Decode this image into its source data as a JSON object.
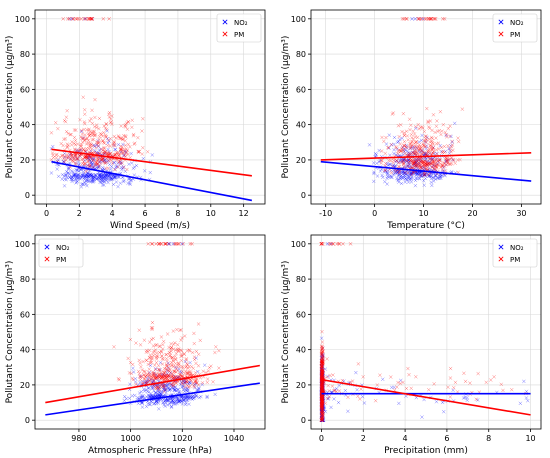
{
  "chart_data": [
    {
      "type": "scatter",
      "xlabel": "Wind Speed (m/s)",
      "ylabel": "Pollutant Concentration (μg/m³)",
      "xlim": [
        -0.7,
        13.3
      ],
      "ylim": [
        -5,
        105
      ],
      "xticks": [
        0,
        2,
        4,
        6,
        8,
        10,
        12
      ],
      "yticks": [
        0,
        20,
        40,
        60,
        80,
        100
      ],
      "legend_position": "top-right",
      "series": [
        {
          "name": "NO₂",
          "color": "#0000ff",
          "marker": "x",
          "cluster": {
            "x_range": [
              0.3,
              12.5
            ],
            "y_range": [
              0,
              75
            ],
            "center": [
              2.3,
              12
            ],
            "density": "high"
          },
          "trend": {
            "x": [
              0.3,
              12.5
            ],
            "y": [
              19,
              -3
            ]
          }
        },
        {
          "name": "PM",
          "color": "#ff0000",
          "marker": "x",
          "cluster": {
            "x_range": [
              0.3,
              12.5
            ],
            "y_range": [
              0,
              100
            ],
            "center": [
              2.3,
              24
            ],
            "density": "high"
          },
          "trend": {
            "x": [
              0.3,
              12.5
            ],
            "y": [
              26,
              11
            ]
          }
        }
      ]
    },
    {
      "type": "scatter",
      "xlabel": "Temperature (°C)",
      "ylabel": "Pollutant Concentration (μg/m³)",
      "xlim": [
        -13,
        34
      ],
      "ylim": [
        -5,
        105
      ],
      "xticks": [
        -10,
        0,
        10,
        20,
        30
      ],
      "yticks": [
        0,
        20,
        40,
        60,
        80,
        100
      ],
      "legend_position": "top-right",
      "series": [
        {
          "name": "NO₂",
          "color": "#0000ff",
          "marker": "x",
          "cluster": {
            "x_range": [
              -10,
              32
            ],
            "y_range": [
              0,
              80
            ],
            "center": [
              8,
              14
            ],
            "density": "high"
          },
          "trend": {
            "x": [
              -11,
              32
            ],
            "y": [
              19,
              8
            ]
          }
        },
        {
          "name": "PM",
          "color": "#ff0000",
          "marker": "x",
          "cluster": {
            "x_range": [
              -10,
              32
            ],
            "y_range": [
              0,
              100
            ],
            "center": [
              10,
              20
            ],
            "density": "high"
          },
          "trend": {
            "x": [
              -11,
              32
            ],
            "y": [
              20,
              24
            ]
          }
        }
      ]
    },
    {
      "type": "scatter",
      "xlabel": "Atmospheric Pressure (hPa)",
      "ylabel": "Pollutant Concentration (μg/m³)",
      "xlim": [
        963,
        1052
      ],
      "ylim": [
        -5,
        105
      ],
      "xticks": [
        980,
        1000,
        1020,
        1040
      ],
      "yticks": [
        0,
        20,
        40,
        60,
        80,
        100
      ],
      "legend_position": "top-left",
      "series": [
        {
          "name": "NO₂",
          "color": "#0000ff",
          "marker": "x",
          "cluster": {
            "x_range": [
              967,
              1050
            ],
            "y_range": [
              0,
              70
            ],
            "center": [
              1014,
              14
            ],
            "density": "high"
          },
          "trend": {
            "x": [
              967,
              1050
            ],
            "y": [
              3,
              21
            ]
          }
        },
        {
          "name": "PM",
          "color": "#ff0000",
          "marker": "x",
          "cluster": {
            "x_range": [
              967,
              1050
            ],
            "y_range": [
              0,
              100
            ],
            "center": [
              1015,
              26
            ],
            "density": "high"
          },
          "trend": {
            "x": [
              967,
              1050
            ],
            "y": [
              10,
              31
            ]
          }
        }
      ]
    },
    {
      "type": "scatter",
      "xlabel": "Precipitation (mm)",
      "ylabel": "Pollutant Concentration (μg/m³)",
      "xlim": [
        -0.5,
        10.5
      ],
      "ylim": [
        -5,
        105
      ],
      "xticks": [
        0,
        2,
        4,
        6,
        8,
        10
      ],
      "yticks": [
        0,
        20,
        40,
        60,
        80,
        100
      ],
      "legend_position": "top-right",
      "series": [
        {
          "name": "NO₂",
          "color": "#0000ff",
          "marker": "x",
          "cluster": {
            "x_range": [
              0,
              10
            ],
            "y_range": [
              0,
              100
            ],
            "center": [
              0,
              15
            ],
            "density": "concentrated at x=0"
          },
          "trend": {
            "x": [
              0,
              10
            ],
            "y": [
              15,
              15
            ]
          }
        },
        {
          "name": "PM",
          "color": "#ff0000",
          "marker": "x",
          "cluster": {
            "x_range": [
              0,
              10
            ],
            "y_range": [
              0,
              100
            ],
            "center": [
              0,
              20
            ],
            "density": "concentrated at x=0"
          },
          "trend": {
            "x": [
              0,
              10
            ],
            "y": [
              23,
              3
            ]
          }
        }
      ]
    }
  ]
}
